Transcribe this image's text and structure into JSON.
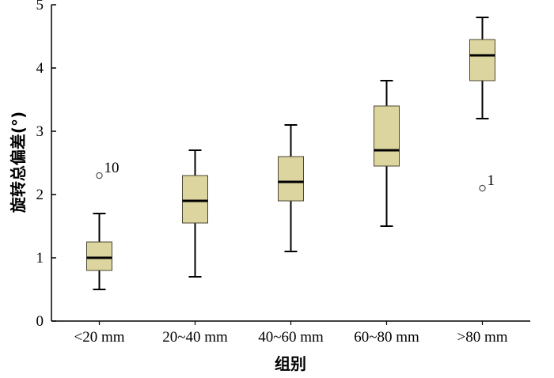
{
  "chart_data": {
    "type": "boxplot",
    "title": "",
    "xlabel": "组别",
    "ylabel": "旋转总偏差(°)",
    "ylim": [
      0,
      5
    ],
    "yticks": [
      "0",
      "1",
      "2",
      "3",
      "4",
      "5"
    ],
    "categories": [
      "<20 mm",
      "20~40 mm",
      "40~60 mm",
      "60~80 mm",
      ">80 mm"
    ],
    "boxes": [
      {
        "category": "<20 mm",
        "whisker_low": 0.5,
        "q1": 0.8,
        "median": 1.0,
        "q3": 1.25,
        "whisker_high": 1.7,
        "outliers": [
          {
            "value": 2.3,
            "label": "10"
          }
        ]
      },
      {
        "category": "20~40 mm",
        "whisker_low": 0.7,
        "q1": 1.55,
        "median": 1.9,
        "q3": 2.3,
        "whisker_high": 2.7,
        "outliers": []
      },
      {
        "category": "40~60 mm",
        "whisker_low": 1.1,
        "q1": 1.9,
        "median": 2.2,
        "q3": 2.6,
        "whisker_high": 3.1,
        "outliers": []
      },
      {
        "category": "60~80 mm",
        "whisker_low": 1.5,
        "q1": 2.45,
        "median": 2.7,
        "q3": 3.4,
        "whisker_high": 3.8,
        "outliers": []
      },
      {
        "category": ">80 mm",
        "whisker_low": 3.2,
        "q1": 3.8,
        "median": 4.2,
        "q3": 4.45,
        "whisker_high": 4.8,
        "outliers": [
          {
            "value": 2.1,
            "label": "1"
          }
        ]
      }
    ],
    "box_color": "#ddd5a0",
    "grid": false,
    "legend": "none"
  }
}
